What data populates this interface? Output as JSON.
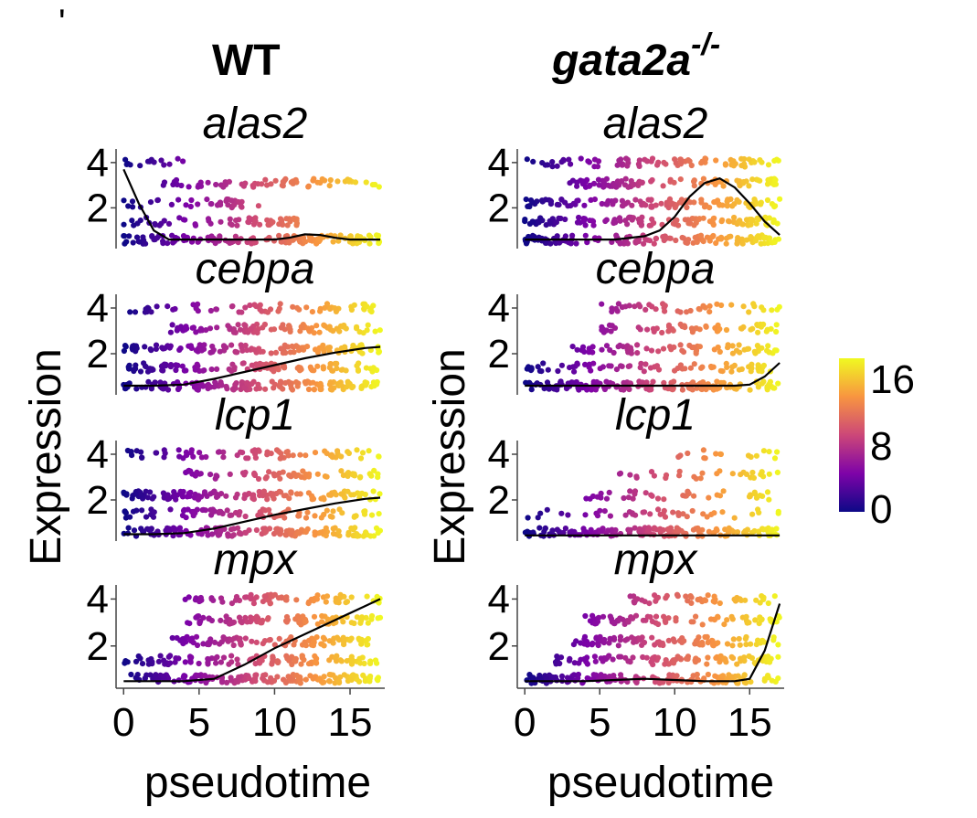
{
  "figure": {
    "corner_mark": "'",
    "columns": [
      {
        "title": "WT",
        "italic": false
      },
      {
        "title": "gata2a",
        "superscript": "-/-",
        "italic": true
      }
    ],
    "ylabel": "Expression",
    "xlabel": "pseudotime",
    "colorbar": {
      "ticks": [
        "16",
        "8",
        "0"
      ],
      "stops": [
        "#0d0887",
        "#7e03a8",
        "#cc4778",
        "#f89540",
        "#f0f921"
      ],
      "range": [
        0,
        17
      ]
    }
  },
  "chart_data": {
    "type": "scatter",
    "x_ticks": [
      "0",
      "5",
      "10",
      "15"
    ],
    "y_ticks": [
      "4",
      "2"
    ],
    "xlim": [
      -0.5,
      17.3
    ],
    "ylim": [
      0.2,
      4.6
    ],
    "color_scale": "plasma",
    "point_rows_y": [
      0.6,
      1.4,
      2.2,
      3.1,
      4.0
    ],
    "panels": [
      {
        "group": "WT",
        "gene": "alas2",
        "rows": [
          [
            [
              0,
              17
            ],
            0.9
          ],
          [
            [
              0,
              12
            ],
            0.5
          ],
          [
            [
              0,
              9
            ],
            0.4
          ],
          [
            [
              2,
              17
            ],
            0.45
          ],
          [
            [
              0,
              4
            ],
            0.3
          ]
        ],
        "trend": {
          "x": [
            0,
            1,
            2,
            3,
            4,
            6,
            8,
            10,
            11,
            12,
            13,
            14,
            15,
            16,
            17
          ],
          "y": [
            3.7,
            2.2,
            1.0,
            0.6,
            0.6,
            0.6,
            0.6,
            0.6,
            0.68,
            0.83,
            0.8,
            0.68,
            0.6,
            0.6,
            0.6
          ]
        }
      },
      {
        "group": "gata2a-/-",
        "gene": "alas2",
        "rows": [
          [
            [
              0,
              17
            ],
            0.95
          ],
          [
            [
              0,
              17
            ],
            0.7
          ],
          [
            [
              0,
              17
            ],
            0.7
          ],
          [
            [
              3,
              17
            ],
            0.7
          ],
          [
            [
              0,
              17
            ],
            0.5
          ]
        ],
        "trend": {
          "x": [
            0,
            2,
            4,
            6,
            8,
            9,
            10,
            11,
            12,
            13,
            14,
            15,
            16,
            17
          ],
          "y": [
            0.6,
            0.6,
            0.6,
            0.6,
            0.75,
            1.0,
            1.6,
            2.5,
            3.1,
            3.3,
            2.9,
            2.2,
            1.4,
            0.8
          ]
        }
      },
      {
        "group": "WT",
        "gene": "cebpa",
        "rows": [
          [
            [
              0,
              17
            ],
            0.95
          ],
          [
            [
              0,
              17
            ],
            0.7
          ],
          [
            [
              0,
              17
            ],
            0.75
          ],
          [
            [
              3,
              17
            ],
            0.65
          ],
          [
            [
              0,
              17
            ],
            0.4
          ]
        ],
        "trend": {
          "x": [
            0,
            2,
            4,
            6,
            8,
            10,
            12,
            14,
            16,
            17
          ],
          "y": [
            0.6,
            0.6,
            0.65,
            0.9,
            1.2,
            1.5,
            1.8,
            2.05,
            2.25,
            2.3
          ]
        }
      },
      {
        "group": "gata2a-/-",
        "gene": "cebpa",
        "rows": [
          [
            [
              0,
              17
            ],
            0.95
          ],
          [
            [
              0,
              17
            ],
            0.45
          ],
          [
            [
              3,
              17
            ],
            0.5
          ],
          [
            [
              5,
              17
            ],
            0.5
          ],
          [
            [
              5,
              17
            ],
            0.35
          ]
        ],
        "trend": {
          "x": [
            0,
            4,
            8,
            12,
            14,
            15,
            16,
            17
          ],
          "y": [
            0.6,
            0.6,
            0.6,
            0.6,
            0.6,
            0.65,
            1.0,
            1.6
          ]
        }
      },
      {
        "group": "WT",
        "gene": "lcp1",
        "rows": [
          [
            [
              0,
              17
            ],
            0.95
          ],
          [
            [
              0,
              17
            ],
            0.5
          ],
          [
            [
              0,
              17
            ],
            0.75
          ],
          [
            [
              4,
              17
            ],
            0.5
          ],
          [
            [
              0,
              17
            ],
            0.45
          ]
        ],
        "trend": {
          "x": [
            0,
            2,
            4,
            6,
            8,
            10,
            12,
            14,
            16,
            17
          ],
          "y": [
            0.5,
            0.5,
            0.55,
            0.75,
            1.05,
            1.35,
            1.6,
            1.85,
            2.05,
            2.1
          ]
        }
      },
      {
        "group": "gata2a-/-",
        "gene": "lcp1",
        "rows": [
          [
            [
              0,
              17
            ],
            0.95
          ],
          [
            [
              0,
              17
            ],
            0.25
          ],
          [
            [
              4,
              17
            ],
            0.3
          ],
          [
            [
              6,
              17
            ],
            0.25
          ],
          [
            [
              10,
              17
            ],
            0.2
          ]
        ],
        "trend": {
          "x": [
            0,
            4,
            8,
            12,
            16,
            17
          ],
          "y": [
            0.45,
            0.45,
            0.45,
            0.45,
            0.45,
            0.45
          ]
        }
      },
      {
        "group": "WT",
        "gene": "mpx",
        "rows": [
          [
            [
              0,
              17
            ],
            0.95
          ],
          [
            [
              0,
              17
            ],
            0.7
          ],
          [
            [
              3,
              17
            ],
            0.7
          ],
          [
            [
              4,
              17
            ],
            0.7
          ],
          [
            [
              4,
              17
            ],
            0.6
          ]
        ],
        "trend": {
          "x": [
            0,
            2,
            4,
            6,
            8,
            10,
            12,
            14,
            16,
            17
          ],
          "y": [
            0.5,
            0.5,
            0.5,
            0.6,
            1.2,
            1.9,
            2.5,
            3.1,
            3.7,
            4.0
          ]
        }
      },
      {
        "group": "gata2a-/-",
        "gene": "mpx",
        "rows": [
          [
            [
              0,
              17
            ],
            0.95
          ],
          [
            [
              2,
              17
            ],
            0.7
          ],
          [
            [
              3,
              17
            ],
            0.7
          ],
          [
            [
              4,
              17
            ],
            0.6
          ],
          [
            [
              7,
              17
            ],
            0.5
          ]
        ],
        "trend": {
          "x": [
            0,
            4,
            6,
            8,
            10,
            12,
            14,
            15,
            16,
            17
          ],
          "y": [
            0.5,
            0.5,
            0.55,
            0.6,
            0.55,
            0.5,
            0.5,
            0.6,
            1.8,
            3.8
          ]
        }
      }
    ]
  }
}
